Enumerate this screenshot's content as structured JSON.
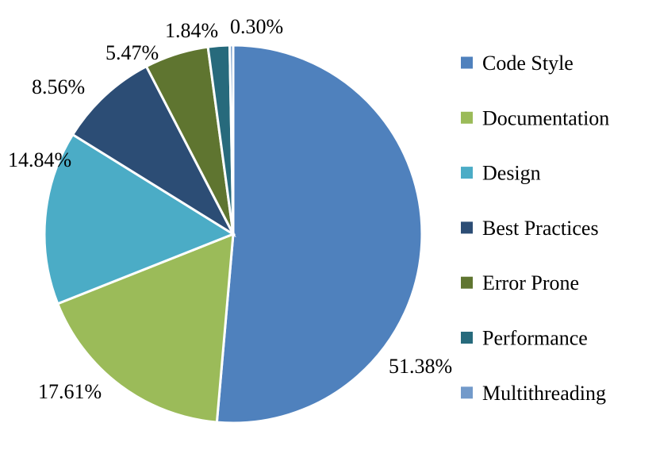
{
  "chart_data": {
    "type": "pie",
    "title": "",
    "categories": [
      "Code Style",
      "Documentation",
      "Design",
      "Best Practices",
      "Error Prone",
      "Performance",
      "Multithreading"
    ],
    "values": [
      51.38,
      17.61,
      14.84,
      8.56,
      5.47,
      1.84,
      0.3
    ],
    "labels": [
      "51.38%",
      "17.61%",
      "14.84%",
      "8.56%",
      "5.47%",
      "1.84%",
      "0.30%"
    ],
    "colors": [
      "#4F81BD",
      "#9BBB59",
      "#4BACC6",
      "#2C4D75",
      "#5F7530",
      "#276A7C",
      "#729ACA"
    ],
    "legend": "right"
  }
}
